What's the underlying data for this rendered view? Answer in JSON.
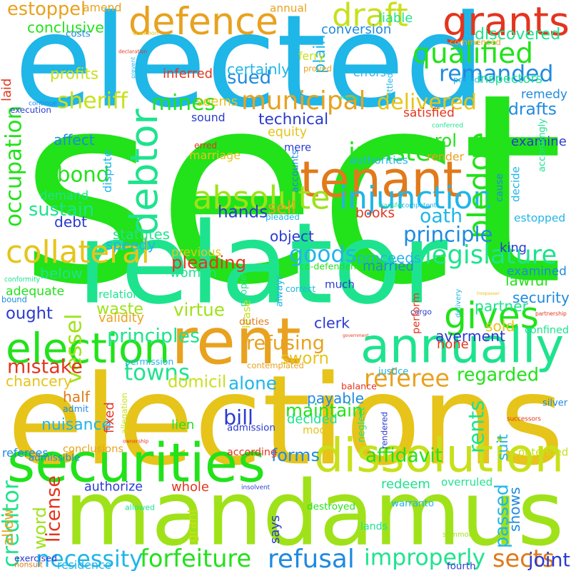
{
  "words": [
    {
      "text": "sect",
      "color": "#22e21a"
    },
    {
      "text": "elected",
      "color": "#1fb6e8"
    },
    {
      "text": "relator",
      "color": "#1ee38e"
    },
    {
      "text": "elections",
      "color": "#e6c419"
    },
    {
      "text": "mandamus",
      "color": "#9fe21a"
    },
    {
      "text": "securities",
      "color": "#22e21a"
    },
    {
      "text": "dissolution",
      "color": "#c8e01a"
    },
    {
      "text": "annually",
      "color": "#1ee38e"
    },
    {
      "text": "rent",
      "color": "#e8a21f"
    },
    {
      "text": "election",
      "color": "#22e21a"
    },
    {
      "text": "grants",
      "color": "#e3351f"
    },
    {
      "text": "defence",
      "color": "#e8a21f"
    },
    {
      "text": "tenant",
      "color": "#e07a1a"
    },
    {
      "text": "debtor",
      "color": "#1ee38e"
    },
    {
      "text": "injunction",
      "color": "#1fb6e8"
    },
    {
      "text": "absolute",
      "color": "#9fe21a"
    },
    {
      "text": "collateral",
      "color": "#e6c419"
    },
    {
      "text": "gives",
      "color": "#22e21a"
    },
    {
      "text": "legislature",
      "color": "#1ee38e"
    },
    {
      "text": "goods",
      "color": "#1fb6e8"
    },
    {
      "text": "draft",
      "color": "#c8e01a"
    },
    {
      "text": "qualified",
      "color": "#22e21a"
    },
    {
      "text": "remanded",
      "color": "#1e8ae0"
    },
    {
      "text": "pledge",
      "color": "#22e21a"
    },
    {
      "text": "municipal",
      "color": "#e8a21f"
    },
    {
      "text": "mines",
      "color": "#22e21a"
    },
    {
      "text": "delivered",
      "color": "#e6c419"
    },
    {
      "text": "remedy",
      "color": "#1e8ae0"
    },
    {
      "text": "sheriff",
      "color": "#c8e01a"
    },
    {
      "text": "occupation",
      "color": "#22e21a"
    },
    {
      "text": "insisted",
      "color": "#22e21a"
    },
    {
      "text": "sued",
      "color": "#1e8ae0"
    },
    {
      "text": "estoppel",
      "color": "#e8a21f"
    },
    {
      "text": "conclusive",
      "color": "#22e21a"
    },
    {
      "text": "bond",
      "color": "#22e21a"
    },
    {
      "text": "sustain",
      "color": "#1ee38e"
    },
    {
      "text": "demand",
      "color": "#1ee38e"
    },
    {
      "text": "sell",
      "color": "#e8a21f"
    },
    {
      "text": "oath",
      "color": "#1fb6e8"
    },
    {
      "text": "principle",
      "color": "#1e8ae0"
    },
    {
      "text": "hands",
      "color": "#2a3ad0"
    },
    {
      "text": "statutes",
      "color": "#1ee38e"
    },
    {
      "text": "object",
      "color": "#2a3ad0"
    },
    {
      "text": "ought",
      "color": "#2a3ad0"
    },
    {
      "text": "vessel",
      "color": "#9fe21a"
    },
    {
      "text": "waste",
      "color": "#9fe21a"
    },
    {
      "text": "adequate",
      "color": "#22e21a"
    },
    {
      "text": "mistake",
      "color": "#e3351f"
    },
    {
      "text": "refusing",
      "color": "#e8a21f"
    },
    {
      "text": "sworn",
      "color": "#e6c419"
    },
    {
      "text": "towns",
      "color": "#1ee38e"
    },
    {
      "text": "principles",
      "color": "#1ee38e"
    },
    {
      "text": "virtue",
      "color": "#9fe21a"
    },
    {
      "text": "proceeds",
      "color": "#1fb6e8"
    },
    {
      "text": "lawful",
      "color": "#22e21a"
    },
    {
      "text": "security",
      "color": "#1e8ae0"
    },
    {
      "text": "examined",
      "color": "#1e8ae0"
    },
    {
      "text": "referee",
      "color": "#e8a21f"
    },
    {
      "text": "regarded",
      "color": "#22e21a"
    },
    {
      "text": "averment",
      "color": "#2a3ad0"
    },
    {
      "text": "bill",
      "color": "#2a3ad0"
    },
    {
      "text": "maintain",
      "color": "#22e21a"
    },
    {
      "text": "nuisance",
      "color": "#1fb6e8"
    },
    {
      "text": "mode",
      "color": "#e6c419"
    },
    {
      "text": "rents",
      "color": "#1ee38e"
    },
    {
      "text": "payable",
      "color": "#1e8ae0"
    },
    {
      "text": "alone",
      "color": "#1fb6e8"
    },
    {
      "text": "domicil",
      "color": "#c8e01a"
    },
    {
      "text": "forms",
      "color": "#1e8ae0"
    },
    {
      "text": "affidavit",
      "color": "#22e21a"
    },
    {
      "text": "necessity",
      "color": "#1fb6e8"
    },
    {
      "text": "forfeiture",
      "color": "#22e21a"
    },
    {
      "text": "refusal",
      "color": "#1e8ae0"
    },
    {
      "text": "improperly",
      "color": "#1ee38e"
    },
    {
      "text": "sects",
      "color": "#e07a1a"
    },
    {
      "text": "creditor",
      "color": "#1ee38e"
    },
    {
      "text": "license",
      "color": "#e3351f"
    },
    {
      "text": "word",
      "color": "#9fe21a"
    },
    {
      "text": "joint",
      "color": "#2a3ad0"
    },
    {
      "text": "passed",
      "color": "#1fb6e8"
    },
    {
      "text": "destroyed",
      "color": "#22e21a"
    },
    {
      "text": "technical",
      "color": "#2a3ad0"
    },
    {
      "text": "equity",
      "color": "#e6c419"
    },
    {
      "text": "parol",
      "color": "#22e21a"
    },
    {
      "text": "render",
      "color": "#e8a21f"
    },
    {
      "text": "decide",
      "color": "#1fb6e8"
    },
    {
      "text": "drafts",
      "color": "#1e8ae0"
    },
    {
      "text": "examine",
      "color": "#2a3ad0"
    },
    {
      "text": "estopped",
      "color": "#1fb6e8"
    },
    {
      "text": "accordingly",
      "color": "#1ee38e"
    },
    {
      "text": "books",
      "color": "#e3351f"
    },
    {
      "text": "pleading",
      "color": "#e3351f"
    },
    {
      "text": "previous",
      "color": "#e6c419"
    },
    {
      "text": "profits",
      "color": "#c8e01a"
    },
    {
      "text": "discovered",
      "color": "#1ee38e"
    },
    {
      "text": "conversion",
      "color": "#1e8ae0"
    },
    {
      "text": "annual",
      "color": "#e8a21f"
    },
    {
      "text": "plain",
      "color": "#1fb6e8"
    },
    {
      "text": "liable",
      "color": "#1ee38e"
    },
    {
      "text": "inspectors",
      "color": "#1ee38e"
    },
    {
      "text": "certainly",
      "color": "#1fb6e8"
    },
    {
      "text": "inferred",
      "color": "#e3351f"
    },
    {
      "text": "seems",
      "color": "#e6c419"
    },
    {
      "text": "satisfied",
      "color": "#e3351f"
    },
    {
      "text": "affect",
      "color": "#1e8ae0"
    },
    {
      "text": "marriage",
      "color": "#e6c419"
    },
    {
      "text": "authorities",
      "color": "#1fb6e8"
    },
    {
      "text": "mere",
      "color": "#2a3ad0"
    },
    {
      "text": "dispute",
      "color": "#1fb6e8"
    },
    {
      "text": "accounts",
      "color": "#1e8ae0"
    },
    {
      "text": "erred",
      "color": "#e3351f"
    },
    {
      "text": "debt",
      "color": "#2a3ad0"
    },
    {
      "text": "speedy",
      "color": "#1fb6e8"
    },
    {
      "text": "pleaded",
      "color": "#1fb6e8"
    },
    {
      "text": "conformity",
      "color": "#1ee38e"
    },
    {
      "text": "below",
      "color": "#1ee38e"
    },
    {
      "text": "relation",
      "color": "#1ee38e"
    },
    {
      "text": "validity",
      "color": "#e8a21f"
    },
    {
      "text": "bound",
      "color": "#1e8ae0"
    },
    {
      "text": "people",
      "color": "#1ee38e"
    },
    {
      "text": "always",
      "color": "#1fb6e8"
    },
    {
      "text": "woman",
      "color": "#1ee38e"
    },
    {
      "text": "married",
      "color": "#1e8ae0"
    },
    {
      "text": "co-defendant",
      "color": "#22e21a"
    },
    {
      "text": "correct",
      "color": "#1fb6e8"
    },
    {
      "text": "lease",
      "color": "#c8e01a"
    },
    {
      "text": "duties",
      "color": "#e07a1a"
    },
    {
      "text": "clerk",
      "color": "#2a3ad0"
    },
    {
      "text": "partner",
      "color": "#1ee38e"
    },
    {
      "text": "delivery",
      "color": "#1fb6e8"
    },
    {
      "text": "sold",
      "color": "#e6c419"
    },
    {
      "text": "cargo",
      "color": "#2a3ad0"
    },
    {
      "text": "much",
      "color": "#2a3ad0"
    },
    {
      "text": "arising",
      "color": "#1ee38e"
    },
    {
      "text": "settled",
      "color": "#1fb6e8"
    },
    {
      "text": "errors",
      "color": "#1fb6e8"
    },
    {
      "text": "perfect",
      "color": "#1fb6e8"
    },
    {
      "text": "conferred",
      "color": "#1ee38e"
    },
    {
      "text": "cause",
      "color": "#1e8ae0"
    },
    {
      "text": "transfer",
      "color": "#1ee38e"
    },
    {
      "text": "competent",
      "color": "#1fb6e8"
    },
    {
      "text": "king",
      "color": "#2a3ad0"
    },
    {
      "text": "trespasser",
      "color": "#e6c419"
    },
    {
      "text": "perform",
      "color": "#e3351f"
    },
    {
      "text": "partnership",
      "color": "#e3351f"
    },
    {
      "text": "confined",
      "color": "#1ee38e"
    },
    {
      "text": "none",
      "color": "#e3351f"
    },
    {
      "text": "government",
      "color": "#e3351f"
    },
    {
      "text": "permission",
      "color": "#1fb6e8"
    },
    {
      "text": "chancery",
      "color": "#e6c419"
    },
    {
      "text": "contemplated",
      "color": "#e8a21f"
    },
    {
      "text": "fixed",
      "color": "#e3351f"
    },
    {
      "text": "half",
      "color": "#e07a1a"
    },
    {
      "text": "admit",
      "color": "#1e8ae0"
    },
    {
      "text": "allegation",
      "color": "#c8e01a"
    },
    {
      "text": "lien",
      "color": "#22e21a"
    },
    {
      "text": "ownership",
      "color": "#e3351f"
    },
    {
      "text": "admission",
      "color": "#2a3ad0"
    },
    {
      "text": "decided",
      "color": "#1ee38e"
    },
    {
      "text": "neglect",
      "color": "#1ee38e"
    },
    {
      "text": "rendered",
      "color": "#2a3ad0"
    },
    {
      "text": "balance",
      "color": "#e3351f"
    },
    {
      "text": "justice",
      "color": "#1fb6e8"
    },
    {
      "text": "suit",
      "color": "#1fb6e8"
    },
    {
      "text": "silver",
      "color": "#1e8ae0"
    },
    {
      "text": "successors",
      "color": "#e3351f"
    },
    {
      "text": "conclusions",
      "color": "#e8a21f"
    },
    {
      "text": "according",
      "color": "#e3351f"
    },
    {
      "text": "contended",
      "color": "#c8e01a"
    },
    {
      "text": "referees",
      "color": "#1e8ae0"
    },
    {
      "text": "admissible",
      "color": "#1e8ae0"
    },
    {
      "text": "authorize",
      "color": "#2a3ad0"
    },
    {
      "text": "whole",
      "color": "#e3351f"
    },
    {
      "text": "insolvent",
      "color": "#2a3ad0"
    },
    {
      "text": "redeem",
      "color": "#1ee38e"
    },
    {
      "text": "warranto",
      "color": "#1fb6e8"
    },
    {
      "text": "overruled",
      "color": "#1ee38e"
    },
    {
      "text": "shows",
      "color": "#1e8ae0"
    },
    {
      "text": "summons",
      "color": "#9fe21a"
    },
    {
      "text": "allow",
      "color": "#e8a21f"
    },
    {
      "text": "allowed",
      "color": "#1ee38e"
    },
    {
      "text": "grant",
      "color": "#c8e01a"
    },
    {
      "text": "says",
      "color": "#2a3ad0"
    },
    {
      "text": "lands",
      "color": "#1ee38e"
    },
    {
      "text": "fourth",
      "color": "#2a3ad0"
    },
    {
      "text": "nonsuit",
      "color": "#e07a1a"
    },
    {
      "text": "exercised",
      "color": "#2a3ad0"
    },
    {
      "text": "residence",
      "color": "#1fb6e8"
    },
    {
      "text": "amend",
      "color": "#e8a21f"
    },
    {
      "text": "costs",
      "color": "#1e8ae0"
    },
    {
      "text": "common",
      "color": "#e6c419"
    },
    {
      "text": "declaration",
      "color": "#e3351f"
    },
    {
      "text": "laid",
      "color": "#e3351f"
    },
    {
      "text": "prevent",
      "color": "#1fb6e8"
    },
    {
      "text": "ferry",
      "color": "#c8e01a"
    },
    {
      "text": "proved",
      "color": "#e8a21f"
    },
    {
      "text": "sound",
      "color": "#2a3ad0"
    },
    {
      "text": "continue",
      "color": "#1e8ae0"
    },
    {
      "text": "execution",
      "color": "#2a3ad0"
    },
    {
      "text": "commenced",
      "color": "#e8a21f"
    }
  ]
}
